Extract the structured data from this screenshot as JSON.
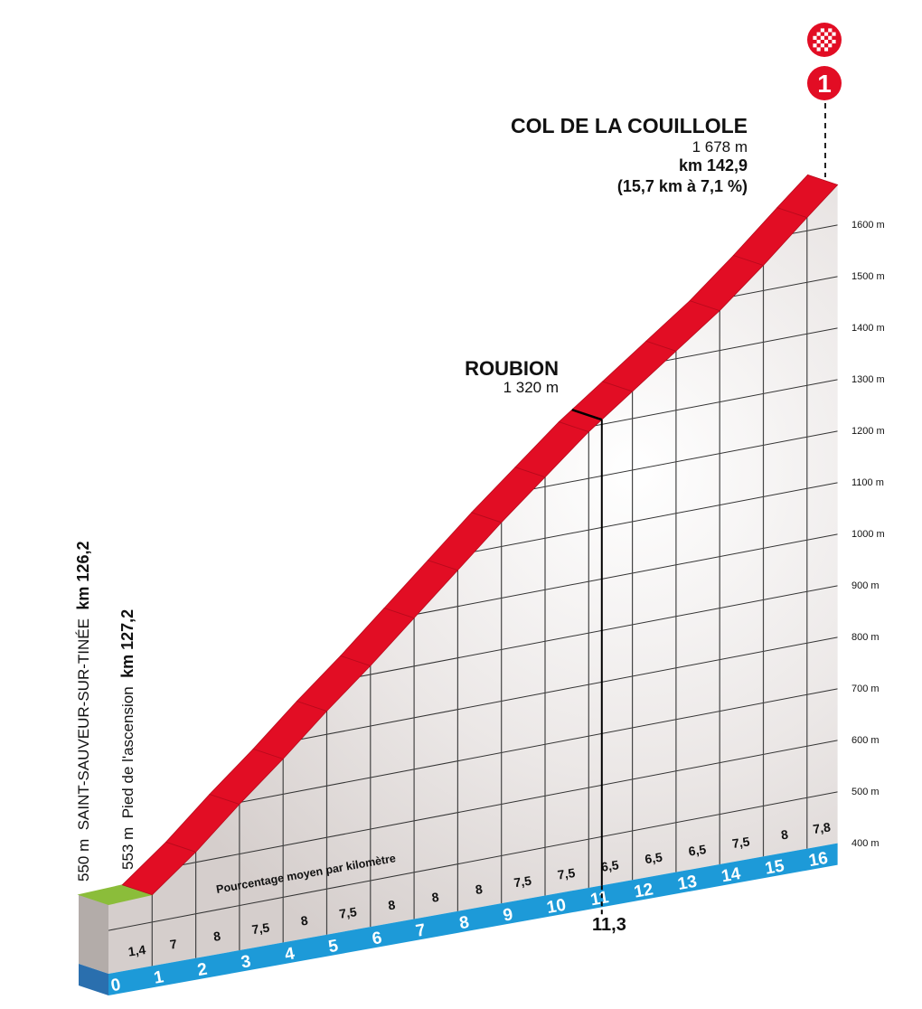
{
  "summit": {
    "name": "COL DE LA COUILLOLE",
    "altitude": "1 678 m",
    "km": "km 142,9",
    "stats": "(15,7 km à 7,1 %)",
    "category": "1"
  },
  "intermediate": {
    "name": "ROUBION",
    "altitude": "1 320 m",
    "km_mark": "11,3"
  },
  "start": {
    "altitude": "550 m",
    "name": "SAINT-SAUVEUR-SUR-TINÉE",
    "km": "km 126,2"
  },
  "foot": {
    "altitude": "553 m",
    "name": "Pied de l'ascension",
    "km": "km 127,2"
  },
  "icons": [
    "checkered-flag-icon",
    "category-badge-icon"
  ],
  "colors": {
    "climb": "#e20d24",
    "flat": "#8bbd3a",
    "km_band": "#1d9ad8",
    "km_band_side": "#2a6fae",
    "face": "#d9d3d1"
  },
  "chart_data": {
    "type": "area",
    "title": "COL DE LA COUILLOLE",
    "xlabel": "km",
    "ylabel": "m",
    "note": "Pourcentage moyen par kilomètre",
    "x_ticks": [
      "0",
      "1",
      "2",
      "3",
      "4",
      "5",
      "6",
      "7",
      "8",
      "9",
      "10",
      "11",
      "12",
      "13",
      "14",
      "15",
      "16"
    ],
    "y_ticks": [
      "400 m",
      "500 m",
      "600 m",
      "700 m",
      "800 m",
      "900 m",
      "1000 m",
      "1100 m",
      "1200 m",
      "1300 m",
      "1400 m",
      "1500 m",
      "1600 m"
    ],
    "y_values": [
      400,
      500,
      600,
      700,
      800,
      900,
      1000,
      1100,
      1200,
      1300,
      1400,
      1500,
      1600
    ],
    "ylim": [
      400,
      1700
    ],
    "xlim": [
      0,
      16.7
    ],
    "start_elevation": 550,
    "foot_elevation": 553,
    "summit_elevation": 1678,
    "segments": [
      {
        "from": 0,
        "to": 1,
        "gradient": "1,4"
      },
      {
        "from": 1,
        "to": 2,
        "gradient": "7"
      },
      {
        "from": 2,
        "to": 3,
        "gradient": "8"
      },
      {
        "from": 3,
        "to": 4,
        "gradient": "7,5"
      },
      {
        "from": 4,
        "to": 5,
        "gradient": "8"
      },
      {
        "from": 5,
        "to": 6,
        "gradient": "7,5"
      },
      {
        "from": 6,
        "to": 7,
        "gradient": "8"
      },
      {
        "from": 7,
        "to": 8,
        "gradient": "8"
      },
      {
        "from": 8,
        "to": 9,
        "gradient": "8"
      },
      {
        "from": 9,
        "to": 10,
        "gradient": "7,5"
      },
      {
        "from": 10,
        "to": 11,
        "gradient": "7,5"
      },
      {
        "from": 11,
        "to": 12,
        "gradient": "6,5"
      },
      {
        "from": 12,
        "to": 13,
        "gradient": "6,5"
      },
      {
        "from": 13,
        "to": 14,
        "gradient": "6,5"
      },
      {
        "from": 14,
        "to": 15,
        "gradient": "7,5"
      },
      {
        "from": 15,
        "to": 16,
        "gradient": "8"
      },
      {
        "from": 16,
        "to": 16.7,
        "gradient": "7,8"
      }
    ],
    "marker": {
      "km": 11.3,
      "elevation": 1320,
      "label": "ROUBION"
    }
  }
}
